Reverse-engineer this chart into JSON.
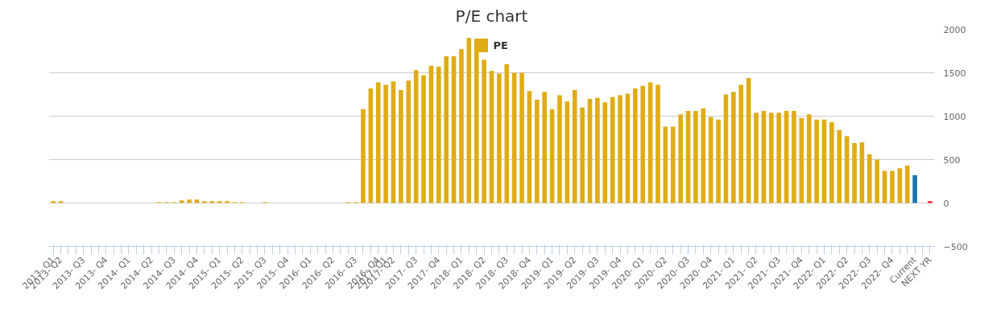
{
  "chart_data": {
    "type": "bar",
    "title": "P/E chart",
    "categories": [
      "2013- Q1",
      "2013- Q2",
      null,
      null,
      "2013- Q3",
      null,
      null,
      "2013- Q4",
      null,
      null,
      "2014- Q1",
      null,
      null,
      "2014- Q2",
      null,
      null,
      "2014- Q3",
      null,
      null,
      "2014- Q4",
      null,
      null,
      "2015- Q1",
      null,
      null,
      "2015- Q2",
      null,
      null,
      "2015- Q3",
      null,
      null,
      "2015- Q4",
      null,
      null,
      "2016- Q1",
      null,
      null,
      "2016- Q2",
      null,
      null,
      "2016- Q3",
      null,
      null,
      "2016- Q4",
      "2017- Q1",
      "2017- Q2",
      null,
      null,
      "2017- Q3",
      null,
      null,
      "2017- Q4",
      null,
      null,
      "2018- Q1",
      null,
      null,
      "2018- Q2",
      null,
      null,
      "2018- Q3",
      null,
      null,
      "2018- Q4",
      null,
      null,
      "2019- Q1",
      null,
      null,
      "2019- Q2",
      null,
      null,
      "2019- Q3",
      null,
      null,
      "2019- Q4",
      null,
      null,
      "2020- Q1",
      null,
      null,
      "2020- Q2",
      null,
      null,
      "2020- Q3",
      null,
      null,
      "2020- Q4",
      null,
      null,
      "2021- Q1",
      null,
      null,
      "2021- Q2",
      null,
      null,
      "2021- Q3",
      null,
      null,
      "2021- Q4",
      null,
      null,
      "2022- Q1",
      null,
      null,
      "2022- Q2",
      null,
      null,
      "2022- Q3",
      null,
      null,
      "2022- Q4",
      null,
      null,
      "Current",
      null,
      "NEXT YR"
    ],
    "series": [
      {
        "name": "PE",
        "color": "#e0ac16",
        "colors": [
          "#e0ac16",
          "#e0ac16",
          "#e0ac16",
          "#e0ac16",
          "#e0ac16",
          "#e0ac16",
          "#e0ac16",
          "#e0ac16",
          "#e0ac16",
          "#e0ac16",
          "#e0ac16",
          "#e0ac16",
          "#e0ac16",
          "#e0ac16",
          "#e0ac16",
          "#e0ac16",
          "#e0ac16",
          "#e0ac16",
          "#e0ac16",
          "#e0ac16",
          "#e0ac16",
          "#e0ac16",
          "#e0ac16",
          "#e0ac16",
          "#e0ac16",
          "#e0ac16",
          "#e0ac16",
          "#e0ac16",
          "#e0ac16",
          "#e0ac16",
          "#e0ac16",
          "#e0ac16",
          "#e0ac16",
          "#e0ac16",
          "#e0ac16",
          "#e0ac16",
          "#e0ac16",
          "#e0ac16",
          "#e0ac16",
          "#e0ac16",
          "#e0ac16",
          "#e0ac16",
          "#e0ac16",
          "#e0ac16",
          "#e0ac16",
          "#e0ac16",
          "#e0ac16",
          "#e0ac16",
          "#e0ac16",
          "#e0ac16",
          "#e0ac16",
          "#e0ac16",
          "#e0ac16",
          "#e0ac16",
          "#e0ac16",
          "#e0ac16",
          "#e0ac16",
          "#e0ac16",
          "#e0ac16",
          "#e0ac16",
          "#e0ac16",
          "#e0ac16",
          "#e0ac16",
          "#e0ac16",
          "#e0ac16",
          "#e0ac16",
          "#e0ac16",
          "#e0ac16",
          "#e0ac16",
          "#e0ac16",
          "#e0ac16",
          "#e0ac16",
          "#e0ac16",
          "#e0ac16",
          "#e0ac16",
          "#e0ac16",
          "#e0ac16",
          "#e0ac16",
          "#e0ac16",
          "#e0ac16",
          "#e0ac16",
          "#e0ac16",
          "#e0ac16",
          "#e0ac16",
          "#e0ac16",
          "#e0ac16",
          "#e0ac16",
          "#e0ac16",
          "#e0ac16",
          "#e0ac16",
          "#e0ac16",
          "#e0ac16",
          "#e0ac16",
          "#e0ac16",
          "#e0ac16",
          "#e0ac16",
          "#e0ac16",
          "#e0ac16",
          "#e0ac16",
          "#e0ac16",
          "#e0ac16",
          "#e0ac16",
          "#e0ac16",
          "#e0ac16",
          "#e0ac16",
          "#e0ac16",
          "#e0ac16",
          "#e0ac16",
          "#e0ac16",
          "#e0ac16",
          "#e0ac16",
          "#e0ac16",
          "#e0ac16",
          "#e0ac16",
          "#1a75b0",
          "#e0ac16",
          "#e8202a"
        ],
        "values": [
          20,
          20,
          null,
          null,
          null,
          null,
          null,
          null,
          null,
          null,
          null,
          null,
          null,
          null,
          10,
          10,
          10,
          30,
          40,
          40,
          20,
          20,
          20,
          20,
          10,
          10,
          null,
          null,
          10,
          null,
          null,
          null,
          null,
          null,
          null,
          null,
          null,
          null,
          null,
          10,
          10,
          1080,
          1320,
          1390,
          1360,
          1400,
          1300,
          1410,
          1530,
          1470,
          1580,
          1570,
          1690,
          1690,
          1770,
          1900,
          1810,
          1650,
          1520,
          1490,
          1600,
          1500,
          1500,
          1290,
          1190,
          1280,
          1080,
          1240,
          1170,
          1300,
          1100,
          1200,
          1210,
          1160,
          1220,
          1240,
          1260,
          1320,
          1350,
          1390,
          1360,
          880,
          880,
          1020,
          1060,
          1060,
          1090,
          990,
          960,
          1250,
          1280,
          1360,
          1440,
          1040,
          1060,
          1040,
          1040,
          1060,
          1060,
          980,
          1020,
          960,
          960,
          930,
          840,
          770,
          690,
          700,
          560,
          500,
          370,
          370,
          400,
          430,
          320,
          null,
          20
        ]
      }
    ],
    "ylim": [
      -500,
      2000
    ],
    "yticks": [
      -500,
      0,
      500,
      1000,
      1500,
      2000
    ],
    "grid": "y",
    "legend": "top"
  }
}
